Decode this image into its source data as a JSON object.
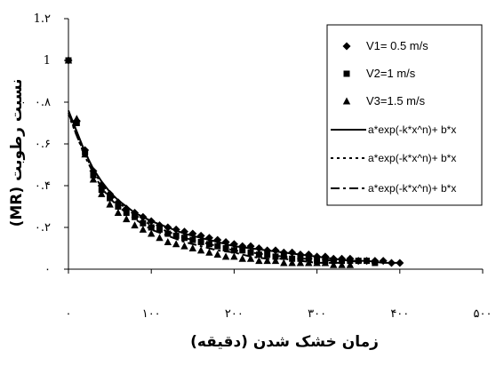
{
  "chart_data": {
    "type": "scatter",
    "title": "",
    "xlabel": "زمان خشک شدن (دقیقه)",
    "ylabel": "نسبت رطوبت (MR)",
    "xlim": [
      0,
      500
    ],
    "ylim": [
      0,
      1.2
    ],
    "x_tick_values": [
      0,
      100,
      200,
      300,
      400,
      500
    ],
    "x_tick_labels": [
      "۰",
      "۱۰۰",
      "۲۰۰",
      "۳۰۰",
      "۴۰۰",
      "۵۰۰"
    ],
    "y_tick_values": [
      0,
      0.2,
      0.4,
      0.6,
      0.8,
      1,
      1.2
    ],
    "y_tick_labels": [
      "۰",
      "۰.۲",
      "۰.۴",
      "۰.۶",
      "۰.۸",
      "1",
      "1.۲"
    ],
    "grid": false,
    "legend_position": "top-right",
    "series": [
      {
        "name": "V1= 0.5 m/s",
        "marker": "diamond",
        "x": [
          0,
          10,
          20,
          30,
          40,
          50,
          60,
          70,
          80,
          90,
          100,
          110,
          120,
          130,
          140,
          150,
          160,
          170,
          180,
          190,
          200,
          210,
          220,
          230,
          240,
          250,
          260,
          270,
          280,
          290,
          300,
          310,
          320,
          330,
          340,
          350,
          360,
          370,
          380,
          390,
          400
        ],
        "y": [
          1.0,
          0.71,
          0.57,
          0.47,
          0.4,
          0.36,
          0.32,
          0.29,
          0.27,
          0.25,
          0.23,
          0.21,
          0.2,
          0.19,
          0.18,
          0.17,
          0.16,
          0.15,
          0.14,
          0.13,
          0.12,
          0.11,
          0.11,
          0.1,
          0.09,
          0.09,
          0.08,
          0.08,
          0.07,
          0.07,
          0.06,
          0.06,
          0.05,
          0.05,
          0.05,
          0.04,
          0.04,
          0.04,
          0.04,
          0.03,
          0.03
        ]
      },
      {
        "name": "V2=1 m/s",
        "marker": "square",
        "x": [
          0,
          10,
          20,
          30,
          40,
          50,
          60,
          70,
          80,
          90,
          100,
          110,
          120,
          130,
          140,
          150,
          160,
          170,
          180,
          190,
          200,
          210,
          220,
          230,
          240,
          250,
          260,
          270,
          280,
          290,
          300,
          310,
          320,
          330,
          340,
          350,
          360,
          370
        ],
        "y": [
          1.0,
          0.7,
          0.56,
          0.45,
          0.38,
          0.34,
          0.3,
          0.27,
          0.25,
          0.22,
          0.2,
          0.19,
          0.17,
          0.16,
          0.15,
          0.14,
          0.13,
          0.12,
          0.11,
          0.1,
          0.09,
          0.09,
          0.08,
          0.07,
          0.07,
          0.06,
          0.06,
          0.05,
          0.05,
          0.05,
          0.04,
          0.04,
          0.04,
          0.04,
          0.04,
          0.04,
          0.04,
          0.03
        ]
      },
      {
        "name": "V3=1.5 m/s",
        "marker": "triangle",
        "x": [
          0,
          10,
          20,
          30,
          40,
          50,
          60,
          70,
          80,
          90,
          100,
          110,
          120,
          130,
          140,
          150,
          160,
          170,
          180,
          190,
          200,
          210,
          220,
          230,
          240,
          250,
          260,
          270,
          280,
          290,
          300,
          310,
          320,
          330,
          340
        ],
        "y": [
          1.0,
          0.72,
          0.55,
          0.43,
          0.36,
          0.31,
          0.27,
          0.24,
          0.21,
          0.19,
          0.17,
          0.15,
          0.13,
          0.12,
          0.11,
          0.1,
          0.09,
          0.08,
          0.07,
          0.06,
          0.06,
          0.05,
          0.05,
          0.04,
          0.04,
          0.04,
          0.03,
          0.03,
          0.03,
          0.03,
          0.03,
          0.03,
          0.02,
          0.02,
          0.02
        ]
      },
      {
        "name": "a*exp(-k*x^n)+ b*x",
        "line_style": "solid",
        "x": [
          0,
          10,
          20,
          30,
          40,
          50,
          60,
          80,
          100,
          120,
          140,
          160,
          180,
          200,
          220,
          240,
          260,
          280,
          300,
          320,
          340,
          360,
          380,
          400
        ],
        "y": [
          0.76,
          0.66,
          0.56,
          0.48,
          0.42,
          0.37,
          0.33,
          0.27,
          0.23,
          0.2,
          0.17,
          0.15,
          0.13,
          0.11,
          0.1,
          0.09,
          0.08,
          0.07,
          0.06,
          0.05,
          0.04,
          0.04,
          0.03,
          0.03
        ]
      },
      {
        "name": "a*exp(-k*x^n)+ b*x",
        "line_style": "dotted",
        "x": [
          0,
          10,
          20,
          30,
          40,
          50,
          60,
          80,
          100,
          120,
          140,
          160,
          180,
          200,
          220,
          240,
          260,
          280,
          300,
          320,
          340,
          360,
          370
        ],
        "y": [
          0.74,
          0.64,
          0.55,
          0.47,
          0.41,
          0.36,
          0.32,
          0.26,
          0.21,
          0.18,
          0.15,
          0.13,
          0.11,
          0.09,
          0.08,
          0.07,
          0.06,
          0.05,
          0.05,
          0.04,
          0.04,
          0.03,
          0.03
        ]
      },
      {
        "name": "a*exp(-k*x^n)+ b*x",
        "line_style": "dash-dot",
        "x": [
          0,
          10,
          20,
          30,
          40,
          50,
          60,
          80,
          100,
          120,
          140,
          160,
          180,
          200,
          220,
          240,
          260,
          280,
          300,
          320,
          340
        ],
        "y": [
          0.75,
          0.64,
          0.54,
          0.46,
          0.39,
          0.34,
          0.3,
          0.24,
          0.19,
          0.16,
          0.13,
          0.11,
          0.09,
          0.08,
          0.06,
          0.05,
          0.05,
          0.04,
          0.03,
          0.03,
          0.03
        ]
      }
    ]
  }
}
